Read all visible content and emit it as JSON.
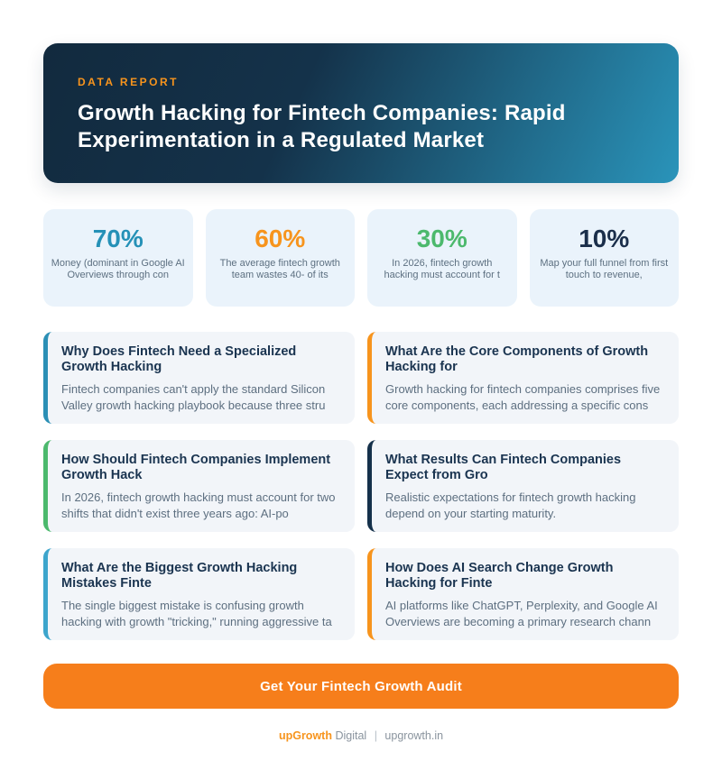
{
  "header": {
    "eyebrow": "DATA REPORT",
    "title": "Growth Hacking for Fintech Companies: Rapid Experimentation in a Regulated Market",
    "gradient_start": "#122a3e",
    "gradient_end": "#2a94ba",
    "eyebrow_color": "#f7941d"
  },
  "stats": [
    {
      "value": "70%",
      "color": "#2591b7",
      "label": "Money (dominant in Google AI Overviews through con"
    },
    {
      "value": "60%",
      "color": "#f7941d",
      "label": "The average fintech growth team wastes 40- of its"
    },
    {
      "value": "30%",
      "color": "#4cb96d",
      "label": "In 2026, fintech growth hacking must account for t"
    },
    {
      "value": "10%",
      "color": "#1b2f4b",
      "label": "Map your full funnel from first touch to revenue,"
    }
  ],
  "cards": [
    {
      "accent": "#2b8fb5",
      "title": "Why Does Fintech Need a Specialized Growth Hacking",
      "body": "Fintech companies can't apply the standard Silicon Valley growth hacking playbook because three stru"
    },
    {
      "accent": "#f7941d",
      "title": "What Are the Core Components of Growth Hacking for",
      "body": "Growth hacking for fintech companies comprises five core components, each addressing a specific cons"
    },
    {
      "accent": "#4cb96d",
      "title": "How Should Fintech Companies Implement Growth Hack",
      "body": "In 2026, fintech growth hacking must account for two shifts that didn't exist three years ago: AI-po"
    },
    {
      "accent": "#15314b",
      "title": "What Results Can Fintech Companies Expect from Gro",
      "body": "Realistic expectations for fintech growth hacking depend on your starting maturity."
    },
    {
      "accent": "#3da5cc",
      "title": "What Are the Biggest Growth Hacking Mistakes Finte",
      "body": "The single biggest mistake is confusing growth hacking with growth \"tricking,\" running aggressive ta"
    },
    {
      "accent": "#f7941d",
      "title": "How Does AI Search Change Growth Hacking for Finte",
      "body": "AI platforms like ChatGPT, Perplexity, and Google AI Overviews are becoming a primary research chann"
    }
  ],
  "cta": {
    "label": "Get Your Fintech Growth Audit",
    "bg": "#f67e1b"
  },
  "footer": {
    "brand": "upGrowth",
    "brand_suffix": "Digital",
    "separator": "|",
    "site": "upgrowth.in"
  }
}
